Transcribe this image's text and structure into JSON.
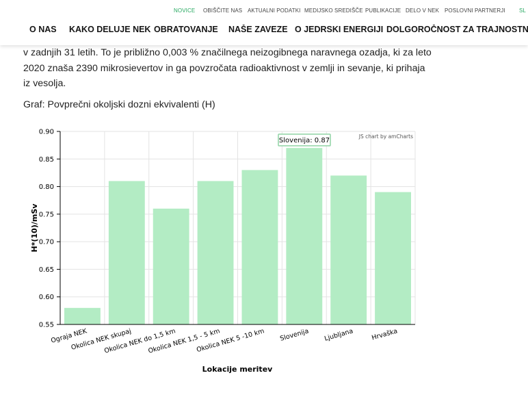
{
  "topnav": [
    {
      "label": "NOVICE",
      "active": true
    },
    {
      "label": "OBIŠČITE NAS",
      "active": false
    },
    {
      "label": "AKTUALNI PODATKI",
      "active": false
    },
    {
      "label": "MEDIJSKO SREDIŠČE",
      "active": false
    },
    {
      "label": "PUBLIKACIJE",
      "active": false
    },
    {
      "label": "DELO V NEK",
      "active": false
    },
    {
      "label": "POSLOVNI PARTNERJI",
      "active": false
    }
  ],
  "language": "SL",
  "mainnav": [
    "O NAS",
    "KAKO DELUJE NEK",
    "OBRATOVANJE",
    "NAŠE ZAVEZE",
    "O JEDRSKI ENERGIJI",
    "DOLGOROČNOST ZA TRAJNOSTNI RA"
  ],
  "article": {
    "lines": [
      "v zadnjih 31 letih. To je približno 0,003 % značilnega neizogibnega naravnega ozadja, ki za leto",
      "2020 znaša 2390 mikrosievertov in ga povzročata radioaktivnost v zemlji in sevanje, ki prihaja",
      "iz vesolja."
    ],
    "chart_caption": "Graf: Povprečni okoljski dozni ekvivalenti (H)"
  },
  "chart_data": {
    "type": "bar",
    "categories": [
      "Ograja NEK",
      "Okolica NEK skupaj",
      "Okolica NEK do 1,5 km",
      "Okolica NEK 1,5 - 5 km",
      "Okolica NEK 5 -10 km",
      "Slovenija",
      "Ljubljana",
      "Hrvaška"
    ],
    "values": [
      0.58,
      0.81,
      0.76,
      0.81,
      0.83,
      0.87,
      0.82,
      0.79
    ],
    "xlabel": "Lokacije meritev",
    "ylabel": "H*(10)/mSv",
    "ylim": [
      0.55,
      0.9
    ],
    "yticks": [
      "0.55",
      "0.60",
      "0.65",
      "0.70",
      "0.75",
      "0.80",
      "0.85",
      "0.90"
    ],
    "grid": true,
    "bar_color": "#b3ecc4",
    "credit": "JS chart by amCharts",
    "tooltip": {
      "category": "Slovenija",
      "text": "Slovenija: 0.87"
    }
  }
}
